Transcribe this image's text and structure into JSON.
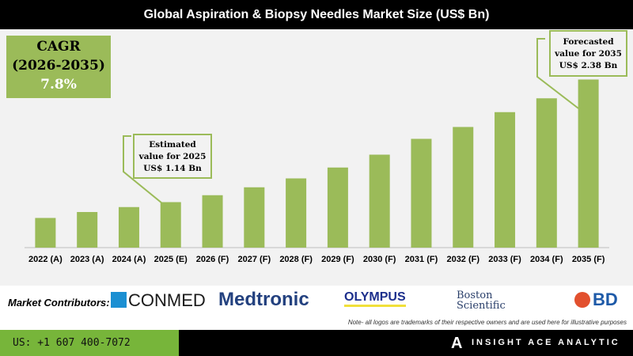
{
  "title": "Global Aspiration & Biopsy Needles Market Size (US$ Bn)",
  "cagr": {
    "label": "CAGR",
    "period": "(2026-2035)",
    "value": "7.8%"
  },
  "callouts": {
    "estimated": [
      "Estimated",
      "value for 2025",
      "US$ 1.14 Bn"
    ],
    "forecasted": [
      "Forecasted",
      "value for 2035",
      "US$ 2.38 Bn"
    ]
  },
  "chart_data": {
    "type": "bar",
    "title": "Global Aspiration & Biopsy Needles Market Size (US$ Bn)",
    "categories": [
      "2022 (A)",
      "2023 (A)",
      "2024 (A)",
      "2025 (E)",
      "2026 (F)",
      "2027 (F)",
      "2028 (F)",
      "2029 (F)",
      "2030 (F)",
      "2031 (F)",
      "2032 (F)",
      "2033 (F)",
      "2034 (F)",
      "2035 (F)"
    ],
    "values": [
      0.98,
      1.04,
      1.09,
      1.14,
      1.21,
      1.29,
      1.38,
      1.49,
      1.62,
      1.78,
      1.9,
      2.05,
      2.19,
      2.38
    ],
    "ylim": [
      0.68,
      2.5
    ],
    "grid": false,
    "bar_color": "#9bbb59"
  },
  "contributors": {
    "label": "Market Contributors:",
    "logos": [
      "CONMED",
      "Medtronic",
      "OLYMPUS",
      "Boston Scientific",
      "BD"
    ],
    "note": "Note- all logos are trademarks of their respective owners and are used here for illustrative purposes"
  },
  "footer": {
    "phone": "US: +1 607 400-7072",
    "brand": "INSIGHT ACE ANALYTIC"
  }
}
